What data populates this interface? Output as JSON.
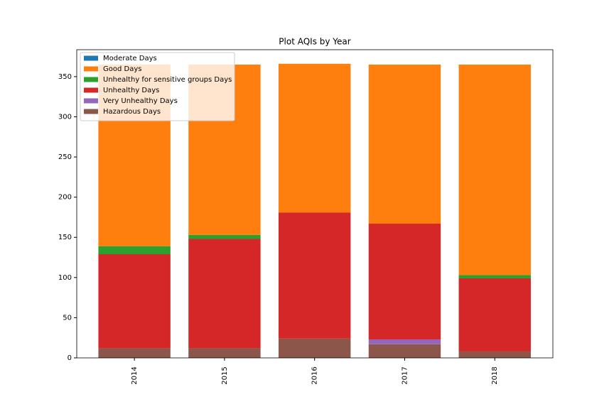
{
  "chart_data": {
    "type": "stacked-bar",
    "title": "Plot AQIs by Year",
    "categories": [
      "2014",
      "2015",
      "2016",
      "2017",
      "2018"
    ],
    "series": [
      {
        "name": "Hazardous Days",
        "color": "#8c564b",
        "values": [
          12,
          12,
          24,
          17,
          8
        ]
      },
      {
        "name": "Very Unhealthy Days",
        "color": "#9467bd",
        "values": [
          0,
          0,
          0,
          6,
          0
        ]
      },
      {
        "name": "Unhealthy Days",
        "color": "#d62728",
        "values": [
          117,
          136,
          157,
          144,
          91
        ]
      },
      {
        "name": "Unhealthy for sensitive groups Days",
        "color": "#2ca02c",
        "values": [
          10,
          5,
          0,
          0,
          4
        ]
      },
      {
        "name": "Good Days",
        "color": "#ff7f0e",
        "values": [
          226,
          212,
          185,
          198,
          262
        ]
      },
      {
        "name": "Moderate Days",
        "color": "#1f77b4",
        "values": [
          0,
          0,
          0,
          0,
          0
        ]
      }
    ],
    "legend_order": [
      5,
      4,
      3,
      2,
      1,
      0
    ],
    "legend": "upper left",
    "ylim": [
      0,
      383.5
    ],
    "yticks": [
      0,
      50,
      100,
      150,
      200,
      250,
      300,
      350
    ]
  }
}
